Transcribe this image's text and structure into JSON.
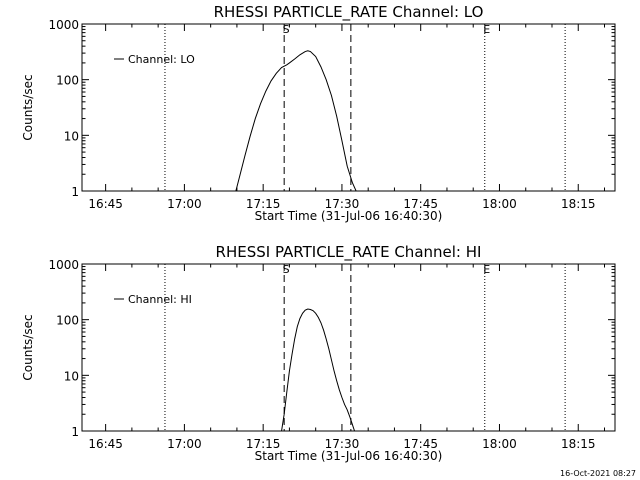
{
  "footer": {
    "timestamp": "16-Oct-2021 08:27"
  },
  "chart_data": [
    {
      "type": "line",
      "title": "RHESSI PARTICLE_RATE Channel: LO",
      "xlabel": "Start Time (31-Jul-06 16:40:30)",
      "ylabel": "Counts/sec",
      "x_unit": "minutes after 16:40:30",
      "xlim": [
        0,
        101.5
      ],
      "ylim": [
        1,
        1000
      ],
      "yscale": "log",
      "x_ticks": [
        {
          "t": 4.5,
          "label": "16:45"
        },
        {
          "t": 19.5,
          "label": "17:00"
        },
        {
          "t": 34.5,
          "label": "17:15"
        },
        {
          "t": 49.5,
          "label": "17:30"
        },
        {
          "t": 64.5,
          "label": "17:45"
        },
        {
          "t": 79.5,
          "label": "18:00"
        },
        {
          "t": 94.5,
          "label": "18:15"
        }
      ],
      "y_ticks": [
        {
          "v": 1,
          "label": "1"
        },
        {
          "v": 10,
          "label": "10"
        },
        {
          "v": 100,
          "label": "100"
        },
        {
          "v": 1000,
          "label": "1000"
        }
      ],
      "markers": [
        {
          "t": 15.8,
          "style": "dotted",
          "label": ""
        },
        {
          "t": 38.5,
          "style": "dashed",
          "label": "S"
        },
        {
          "t": 51.2,
          "style": "dashed",
          "label": ""
        },
        {
          "t": 76.7,
          "style": "dotted",
          "label": "E"
        },
        {
          "t": 92.0,
          "style": "dotted",
          "label": ""
        }
      ],
      "legend": {
        "position": "top-left"
      },
      "series": [
        {
          "name": "Channel: LO",
          "t": [
            29.3,
            30.0,
            31.0,
            32.0,
            33.0,
            34.0,
            35.0,
            36.0,
            37.0,
            38.0,
            39.0,
            39.5,
            40.5,
            41.5,
            42.5,
            43.0,
            43.5,
            44.5,
            45.5,
            46.5,
            47.5,
            48.5,
            49.5,
            50.5,
            51.5,
            52.2
          ],
          "values": [
            1.0,
            1.8,
            4.2,
            9.5,
            20,
            37,
            62,
            95,
            130,
            165,
            185,
            200,
            235,
            280,
            320,
            330,
            320,
            260,
            170,
            100,
            52,
            22,
            8,
            2.8,
            1.4,
            1.0
          ]
        }
      ]
    },
    {
      "type": "line",
      "title": "RHESSI PARTICLE_RATE Channel: HI",
      "xlabel": "Start Time (31-Jul-06 16:40:30)",
      "ylabel": "Counts/sec",
      "x_unit": "minutes after 16:40:30",
      "xlim": [
        0,
        101.5
      ],
      "ylim": [
        1,
        1000
      ],
      "yscale": "log",
      "x_ticks": [
        {
          "t": 4.5,
          "label": "16:45"
        },
        {
          "t": 19.5,
          "label": "17:00"
        },
        {
          "t": 34.5,
          "label": "17:15"
        },
        {
          "t": 49.5,
          "label": "17:30"
        },
        {
          "t": 64.5,
          "label": "17:45"
        },
        {
          "t": 79.5,
          "label": "18:00"
        },
        {
          "t": 94.5,
          "label": "18:15"
        }
      ],
      "y_ticks": [
        {
          "v": 1,
          "label": "1"
        },
        {
          "v": 10,
          "label": "10"
        },
        {
          "v": 100,
          "label": "100"
        },
        {
          "v": 1000,
          "label": "1000"
        }
      ],
      "markers": [
        {
          "t": 15.8,
          "style": "dotted",
          "label": ""
        },
        {
          "t": 38.5,
          "style": "dashed",
          "label": "S"
        },
        {
          "t": 51.2,
          "style": "dashed",
          "label": ""
        },
        {
          "t": 76.7,
          "style": "dotted",
          "label": "E"
        },
        {
          "t": 92.0,
          "style": "dotted",
          "label": ""
        }
      ],
      "legend": {
        "position": "top-left"
      },
      "series": [
        {
          "name": "Channel: HI",
          "t": [
            38.0,
            38.5,
            39.0,
            39.5,
            40.0,
            40.5,
            41.0,
            41.5,
            42.0,
            42.5,
            43.0,
            43.5,
            44.0,
            44.5,
            45.0,
            45.5,
            46.0,
            46.5,
            47.0,
            47.5,
            48.0,
            48.5,
            49.0,
            49.5,
            50.0,
            50.5,
            51.0,
            51.5,
            51.9
          ],
          "values": [
            1.0,
            2.0,
            5.0,
            12,
            24,
            45,
            75,
            105,
            130,
            148,
            155,
            152,
            145,
            130,
            110,
            88,
            65,
            45,
            30,
            19,
            12,
            8,
            5.5,
            4.0,
            3.0,
            2.4,
            1.8,
            1.3,
            1.0
          ]
        }
      ]
    }
  ]
}
